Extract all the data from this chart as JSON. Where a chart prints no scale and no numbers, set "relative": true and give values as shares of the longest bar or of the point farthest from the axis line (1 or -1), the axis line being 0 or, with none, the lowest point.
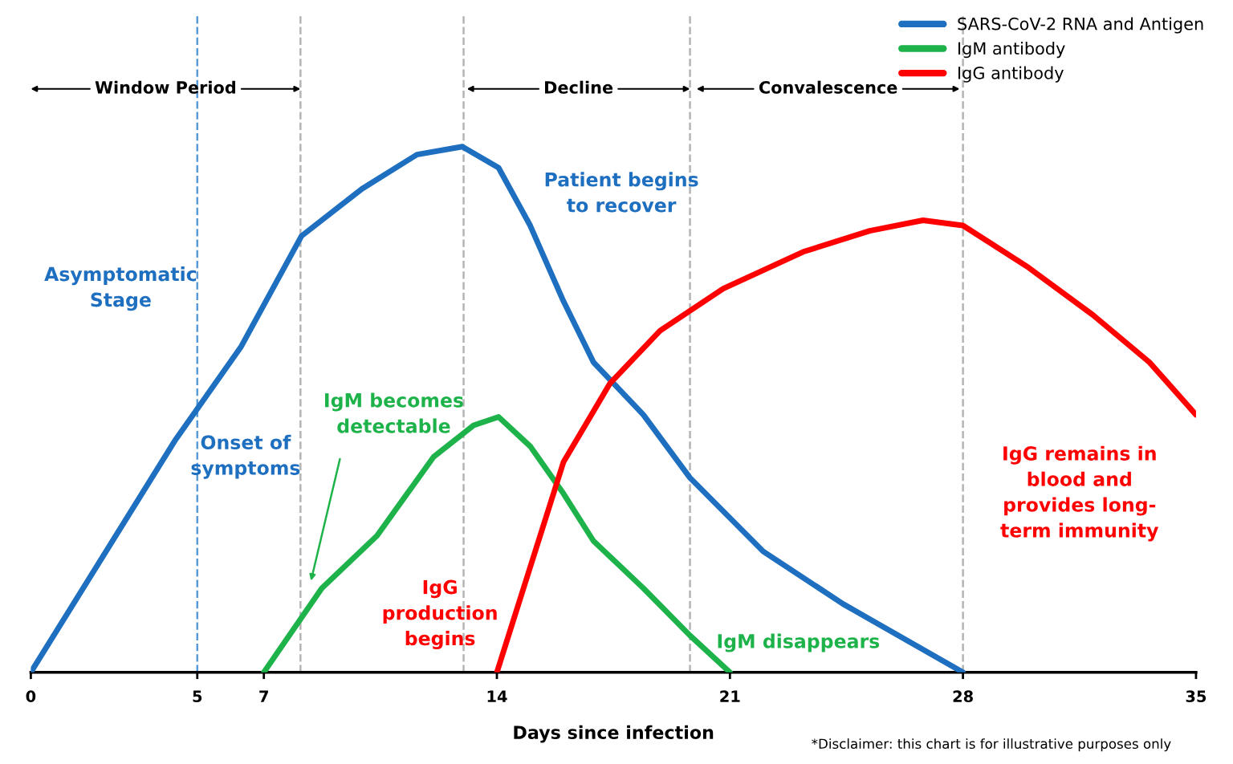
{
  "chart_data": {
    "type": "line",
    "relative": true,
    "xlabel": "Days since infection",
    "x": [
      0,
      4.32,
      6.32,
      8.13,
      9.95,
      11.6,
      12.96,
      14.05,
      15.0,
      15.97,
      16.9,
      18.4,
      19.8,
      22.0,
      24.4,
      28
    ],
    "xlim": [
      0,
      35
    ],
    "xticks": [
      0,
      5,
      7,
      14,
      21,
      28,
      35
    ],
    "series": [
      {
        "name": "SARS-CoV-2 RNA and Antigen",
        "color": "#1f6fc1",
        "values": [
          0,
          0.44,
          0.62,
          0.83,
          0.92,
          0.985,
          1.0,
          0.96,
          0.85,
          0.71,
          0.59,
          0.49,
          0.37,
          0.23,
          0.13,
          0
        ]
      },
      {
        "name": "IgM antibody",
        "color": "#1db34a",
        "x": [
          7,
          8.74,
          10.4,
          12.1,
          13.3,
          14.05,
          15.0,
          16.0,
          16.9,
          18.4,
          19.8,
          21
        ],
        "values": [
          0,
          0.16,
          0.26,
          0.41,
          0.47,
          0.486,
          0.43,
          0.34,
          0.25,
          0.16,
          0.07,
          0
        ]
      },
      {
        "name": "IgG antibody",
        "color": "#ff0000",
        "x": [
          14,
          15.0,
          16.0,
          17.4,
          18.9,
          20.8,
          23.2,
          25.2,
          26.8,
          28.0,
          29.97,
          31.9,
          33.6,
          35
        ],
        "values": [
          0,
          0.2,
          0.4,
          0.55,
          0.65,
          0.73,
          0.8,
          0.84,
          0.86,
          0.85,
          0.77,
          0.68,
          0.59,
          0.49
        ]
      }
    ],
    "ref_lines": [
      {
        "axis": "x",
        "value": 5,
        "color": "#5b9bd5",
        "line_style": "dashed"
      },
      {
        "axis": "x",
        "value": 8.1,
        "color": "#b4b4b4",
        "line_style": "dashed"
      },
      {
        "axis": "x",
        "value": 13,
        "color": "#b4b4b4",
        "line_style": "dashed"
      },
      {
        "axis": "x",
        "value": 19.8,
        "color": "#b4b4b4",
        "line_style": "dashed"
      },
      {
        "axis": "x",
        "value": 28,
        "color": "#b4b4b4",
        "line_style": "dashed"
      }
    ],
    "annotations": [
      "Window Period",
      "Decline",
      "Convalescence",
      "Asymptomatic\nStage",
      "Onset of\nsymptoms",
      "IgM becomes\ndetectable",
      "Patient begins\nto recover",
      "IgG\nproduction\nbegins",
      "IgM disappears",
      "IgG remains in\nblood and\nprovides long-\nterm immunity",
      "*Disclaimer: this chart is for illustrative purposes only"
    ],
    "legend": "top right",
    "grid": false,
    "line_style": "solid",
    "marker": "none"
  }
}
